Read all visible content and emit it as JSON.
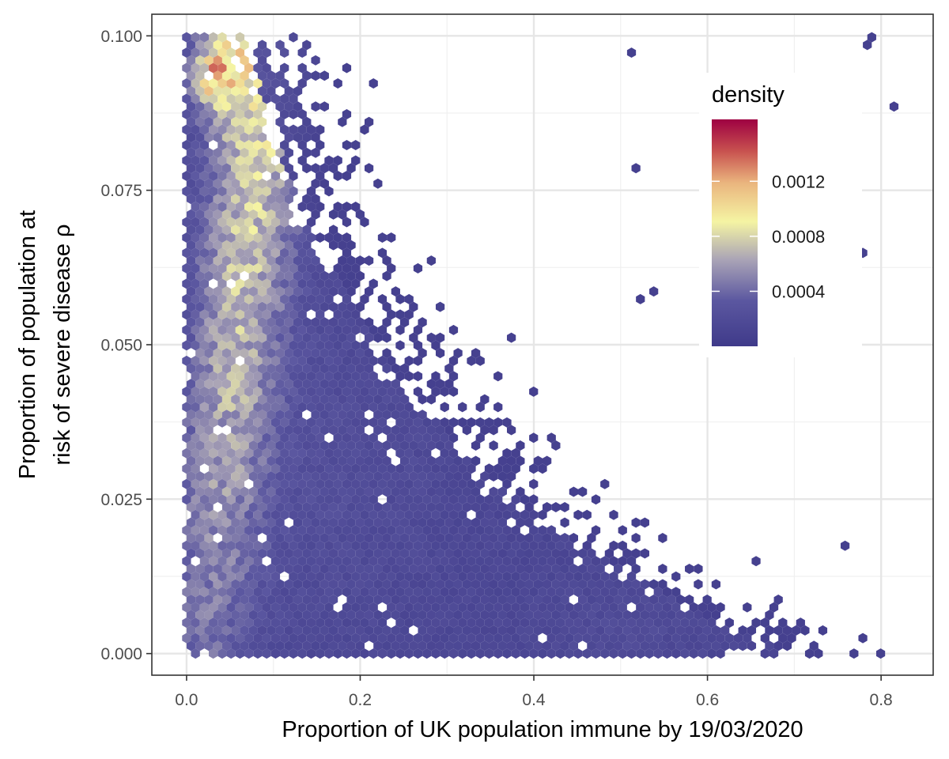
{
  "chart_data": {
    "type": "heatmap",
    "subtype": "hexbin",
    "title": "",
    "xlabel": "Proportion of UK population immune by 19/03/2020",
    "ylabel_lines": [
      "Proportion of population at",
      "risk of severe disease ρ"
    ],
    "xlim": [
      -0.04,
      0.86
    ],
    "ylim": [
      -0.0035,
      0.1035
    ],
    "x_ticks": [
      0.0,
      0.2,
      0.4,
      0.6,
      0.8
    ],
    "x_tick_labels": [
      "0.0",
      "0.2",
      "0.4",
      "0.6",
      "0.8"
    ],
    "y_ticks": [
      0.0,
      0.025,
      0.05,
      0.075,
      0.1
    ],
    "y_tick_labels": [
      "0.000",
      "0.025",
      "0.050",
      "0.075",
      "0.100"
    ],
    "grid": true,
    "legend": {
      "title": "density",
      "placement": "inside-top-right",
      "range": [
        0,
        0.00165
      ],
      "breaks": [
        0.0004,
        0.0008,
        0.0012
      ],
      "break_labels": [
        "0.0004",
        "0.0008",
        "0.0012"
      ],
      "colors": [
        "#3f3a8a",
        "#5b57a0",
        "#a9a3b6",
        "#f5f4a3",
        "#eab57e",
        "#c8524f",
        "#9e0142"
      ]
    },
    "density_model": {
      "description": "Approximate hexbin density of simulated (x, rho) pairs, estimated from the figure",
      "x_range": [
        0.0,
        0.82
      ],
      "y_range": [
        0.0,
        0.1
      ],
      "peak": {
        "x": 0.035,
        "y": 0.094,
        "density": 0.00165
      },
      "hex_count_x": 80
    }
  },
  "colors": {
    "panel_border": "#333333",
    "grid": "#e6e6e6",
    "background": "#ffffff"
  }
}
